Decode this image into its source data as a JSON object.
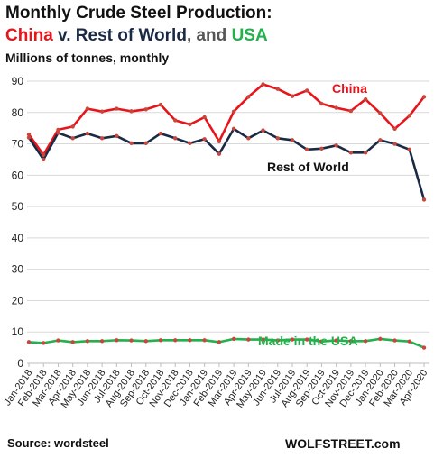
{
  "header": {
    "title": "Monthly Crude Steel Production:",
    "subtitle_china": "China",
    "subtitle_v": " v. ",
    "subtitle_row": "Rest of World",
    "subtitle_and": ", and ",
    "subtitle_usa": "USA",
    "units": "Millions of tonnes, monthly"
  },
  "footer": {
    "source": "Source: wordsteel",
    "brand": "WOLFSTREET.com"
  },
  "colors": {
    "china": "#e8141b",
    "row": "#1b2a44",
    "usa": "#22b14c",
    "marker": "#c8463c",
    "grid": "#d9d9d9"
  },
  "chart_data": {
    "type": "line",
    "title": "Monthly Crude Steel Production: China v. Rest of World, and USA",
    "ylabel": "Millions of tonnes, monthly",
    "ylim": [
      0,
      90
    ],
    "yticks": [
      0,
      10,
      20,
      30,
      40,
      50,
      60,
      70,
      80,
      90
    ],
    "grid": true,
    "categories": [
      "Jan-2018",
      "Feb-2018",
      "Mar-2018",
      "Apr-2018",
      "May-2018",
      "Jun-2018",
      "Jul-2018",
      "Aug-2018",
      "Sep-2018",
      "Oct-2018",
      "Nov-2018",
      "Dec-2018",
      "Jan-2019",
      "Feb-2019",
      "Mar-2019",
      "Apr-2019",
      "May-2019",
      "Jun-2019",
      "Jul-2019",
      "Aug-2019",
      "Sep-2019",
      "Oct-2019",
      "Nov-2019",
      "Dec-2019",
      "Jan-2020",
      "Feb-2020",
      "Mar-2020",
      "Apr-2020"
    ],
    "series": [
      {
        "name": "China",
        "color": "#e8141b",
        "values": [
          73.0,
          66.5,
          74.5,
          75.5,
          81.2,
          80.3,
          81.2,
          80.4,
          81.0,
          82.5,
          77.5,
          76.2,
          78.5,
          70.8,
          80.3,
          85.0,
          89.0,
          87.5,
          85.2,
          87.0,
          82.8,
          81.5,
          80.5,
          84.2,
          79.8,
          74.8,
          79.0,
          85.0
        ]
      },
      {
        "name": "Rest of World",
        "color": "#1b2a44",
        "values": [
          72.0,
          65.0,
          73.5,
          71.8,
          73.3,
          71.8,
          72.5,
          70.2,
          70.2,
          73.3,
          71.8,
          70.2,
          71.5,
          66.8,
          74.8,
          71.8,
          74.3,
          71.8,
          71.2,
          68.2,
          68.5,
          69.5,
          67.2,
          67.2,
          71.2,
          70.0,
          68.2,
          52.2
        ]
      },
      {
        "name": "Made in the USA",
        "color": "#22b14c",
        "values": [
          6.8,
          6.5,
          7.3,
          6.8,
          7.1,
          7.1,
          7.4,
          7.3,
          7.1,
          7.4,
          7.4,
          7.4,
          7.4,
          6.8,
          7.8,
          7.6,
          7.6,
          7.3,
          7.6,
          7.6,
          7.0,
          7.3,
          7.1,
          7.1,
          7.8,
          7.3,
          7.0,
          5.0
        ]
      }
    ],
    "annotations": [
      "China",
      "Rest of World",
      "Made in the USA"
    ]
  }
}
